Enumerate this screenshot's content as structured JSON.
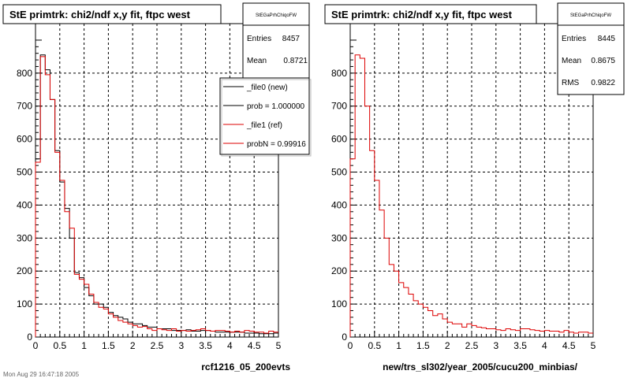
{
  "left_panel": {
    "title": "StE primtrk: chi2/ndf x,y fit, ftpc west",
    "xlabel": "rcf1216_05_200evts",
    "stats": {
      "name": "StEGaPrhChiqoFW",
      "rows": [
        {
          "label": "Entries",
          "value": "8457"
        },
        {
          "label": "Mean",
          "value": "0.8721"
        }
      ]
    },
    "legend": [
      {
        "label": "_file0 (new)",
        "color": "#000000"
      },
      {
        "label": "prob = 1.000000",
        "color": "#000000"
      },
      {
        "label": "_file1 (ref)",
        "color": "#dd0000"
      },
      {
        "label": "probN = 0.99916",
        "color": "#dd0000"
      }
    ]
  },
  "right_panel": {
    "title": "StE primtrk: chi2/ndf x,y fit, ftpc west",
    "xlabel": "new/trs_sl302/year_2005/cucu200_minbias/",
    "stats": {
      "name": "StEGaPrhChiqoFW",
      "rows": [
        {
          "label": "Entries",
          "value": "8445"
        },
        {
          "label": "Mean",
          "value": "0.8675"
        },
        {
          "label": "RMS",
          "value": "0.9822"
        }
      ]
    }
  },
  "footer": {
    "text": "Mon Aug 29 16:47:18 2005"
  },
  "colors": {
    "new": "#000000",
    "ref": "#dd0000",
    "grid": "#000000"
  },
  "chart_data": [
    {
      "type": "histogram",
      "title": "StE primtrk: chi2/ndf x,y fit, ftpc west",
      "xlabel": "rcf1216_05_200evts",
      "ylabel": "",
      "xlim": [
        0,
        5
      ],
      "ylim": [
        0,
        950
      ],
      "xticks": [
        0,
        0.5,
        1,
        1.5,
        2,
        2.5,
        3,
        3.5,
        4,
        4.5,
        5
      ],
      "yticks": [
        0,
        100,
        200,
        300,
        400,
        500,
        600,
        700,
        800
      ],
      "grid": true,
      "bin_edges_start": 0,
      "bin_width": 0.1,
      "series": [
        {
          "name": "_file0 (new)",
          "color": "#000000",
          "values": [
            540,
            855,
            810,
            720,
            565,
            470,
            390,
            300,
            195,
            180,
            150,
            125,
            100,
            100,
            90,
            75,
            65,
            60,
            55,
            45,
            40,
            40,
            35,
            30,
            30,
            25,
            25,
            25,
            20,
            20,
            20,
            22,
            18,
            18,
            20,
            20,
            18,
            15,
            15,
            15,
            15,
            15,
            15,
            12,
            12,
            12,
            10,
            10,
            10,
            12
          ]
        },
        {
          "name": "_file1 (ref)",
          "color": "#dd0000",
          "values": [
            530,
            850,
            795,
            720,
            560,
            475,
            380,
            330,
            190,
            175,
            160,
            130,
            105,
            90,
            85,
            70,
            60,
            50,
            45,
            40,
            35,
            30,
            32,
            25,
            20,
            25,
            22,
            20,
            25,
            18,
            20,
            18,
            20,
            22,
            25,
            20,
            18,
            20,
            20,
            18,
            15,
            18,
            15,
            20,
            18,
            15,
            15,
            12,
            18,
            15
          ]
        }
      ]
    },
    {
      "type": "histogram",
      "title": "StE primtrk: chi2/ndf x,y fit, ftpc west",
      "xlabel": "new/trs_sl302/year_2005/cucu200_minbias/",
      "ylabel": "",
      "xlim": [
        0,
        5
      ],
      "ylim": [
        0,
        950
      ],
      "xticks": [
        0,
        0.5,
        1,
        1.5,
        2,
        2.5,
        3,
        3.5,
        4,
        4.5,
        5
      ],
      "yticks": [
        0,
        100,
        200,
        300,
        400,
        500,
        600,
        700,
        800
      ],
      "grid": true,
      "bin_edges_start": 0,
      "bin_width": 0.1,
      "series": [
        {
          "name": "",
          "color": "#dd0000",
          "values": [
            540,
            855,
            845,
            700,
            565,
            475,
            385,
            300,
            220,
            200,
            165,
            150,
            130,
            110,
            100,
            90,
            80,
            65,
            70,
            55,
            45,
            40,
            40,
            30,
            40,
            35,
            30,
            28,
            25,
            25,
            22,
            20,
            25,
            22,
            20,
            25,
            25,
            22,
            20,
            18,
            20,
            18,
            18,
            15,
            20,
            15,
            12,
            15,
            15,
            12
          ]
        }
      ]
    }
  ]
}
